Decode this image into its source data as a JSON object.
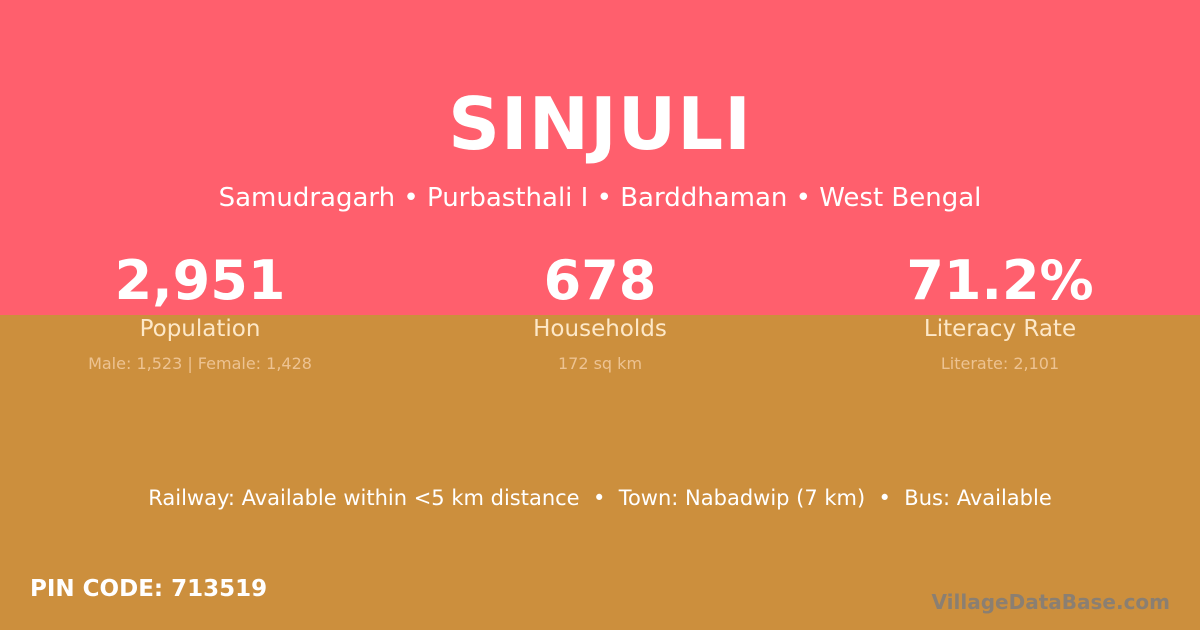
{
  "colors": {
    "top": "#ff5f6d",
    "bottom": "#cc8f3d"
  },
  "title": "SINJULI",
  "subtitle": "Samudragarh • Purbasthali I • Barddhaman • West Bengal",
  "stats": [
    {
      "value": "2,951",
      "label": "Population",
      "sub": "Male: 1,523 | Female: 1,428"
    },
    {
      "value": "678",
      "label": "Households",
      "sub": "172 sq km"
    },
    {
      "value": "71.2%",
      "label": "Literacy Rate",
      "sub": "Literate: 2,101"
    }
  ],
  "facts": "Railway: Available within <5 km distance  •  Town: Nabadwip (7 km)  •  Bus: Available",
  "pin": "PIN CODE: 713519",
  "brand": "VillageDataBase.com"
}
